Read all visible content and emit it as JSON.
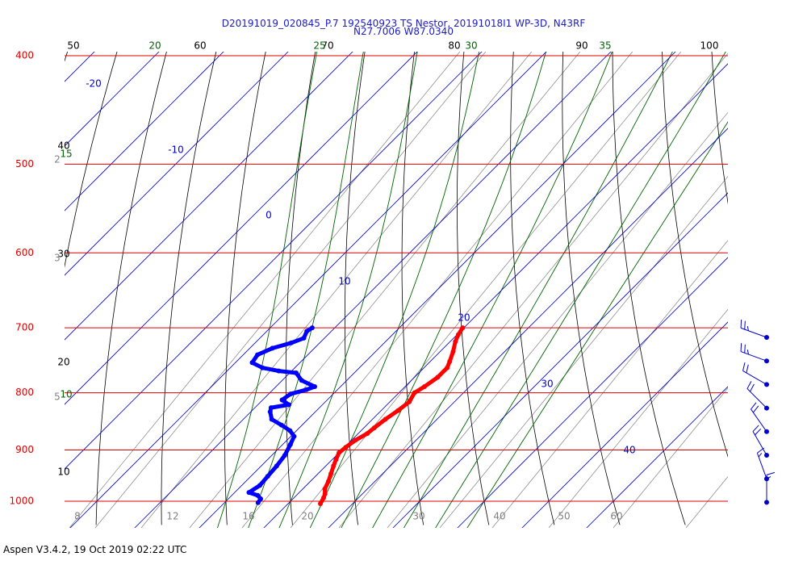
{
  "header": {
    "line1": "D20191019_020845_P.7 192540923 TS Nestor, 20191018I1 WP-3D, N43RF",
    "line2": "N27.7006 W87.0340"
  },
  "footer": {
    "text": "Aspen V3.4.2, 19 Oct 2019  02:22 UTC"
  },
  "colors": {
    "isobar": "#e00000",
    "isotherm": "#0000cc",
    "dry_adiabat": "#000000",
    "moist_adiabat": "#006400",
    "mixing_ratio": "#808080",
    "temperature": "#ff0000",
    "dewpoint": "#0000ff",
    "wind": "#0000cc"
  },
  "chart_data": {
    "type": "skew-t",
    "pressure_levels": [
      {
        "p": 400,
        "label": "400"
      },
      {
        "p": 500,
        "label": "500"
      },
      {
        "p": 600,
        "label": "600"
      },
      {
        "p": 700,
        "label": "700"
      },
      {
        "p": 800,
        "label": "800"
      },
      {
        "p": 900,
        "label": "900"
      },
      {
        "p": 1000,
        "label": "1000"
      }
    ],
    "isotherm_labels": [
      "-20",
      "-10",
      "0",
      "10",
      "20",
      "30",
      "40"
    ],
    "dry_adiabat_labels": [
      "50",
      "60",
      "70",
      "80",
      "90",
      "100",
      "40",
      "30",
      "20",
      "10"
    ],
    "moist_adiabat_labels": [
      "20",
      "25",
      "30",
      "35",
      "15",
      "10"
    ],
    "mixing_ratio_labels": [
      "8",
      "12",
      "16",
      "20",
      "30",
      "40",
      "50",
      "60",
      "2",
      "3",
      "5"
    ],
    "temperature": [
      [
        700,
        9.8
      ],
      [
        710,
        10.2
      ],
      [
        720,
        10.8
      ],
      [
        735,
        12.0
      ],
      [
        750,
        13.0
      ],
      [
        760,
        13.6
      ],
      [
        775,
        13.6
      ],
      [
        790,
        13.0
      ],
      [
        800,
        12.4
      ],
      [
        815,
        13.0
      ],
      [
        830,
        12.6
      ],
      [
        845,
        12.0
      ],
      [
        860,
        11.6
      ],
      [
        870,
        11.4
      ],
      [
        882,
        10.6
      ],
      [
        895,
        10.2
      ],
      [
        905,
        10.0
      ],
      [
        918,
        10.6
      ],
      [
        930,
        11.2
      ],
      [
        945,
        12.0
      ],
      [
        960,
        12.8
      ],
      [
        975,
        13.4
      ],
      [
        985,
        14.2
      ],
      [
        993,
        14.6
      ],
      [
        1005,
        15.0
      ]
    ],
    "dewpoint": [
      [
        700,
        -13.5
      ],
      [
        705,
        -13.8
      ],
      [
        715,
        -13.2
      ],
      [
        722,
        -14.4
      ],
      [
        730,
        -16.5
      ],
      [
        740,
        -17.8
      ],
      [
        752,
        -17.4
      ],
      [
        760,
        -15.0
      ],
      [
        765,
        -12.0
      ],
      [
        768,
        -9.0
      ],
      [
        780,
        -7.0
      ],
      [
        790,
        -4.0
      ],
      [
        795,
        -4.8
      ],
      [
        802,
        -6.6
      ],
      [
        812,
        -7.0
      ],
      [
        820,
        -5.2
      ],
      [
        825,
        -7.5
      ],
      [
        832,
        -7.0
      ],
      [
        845,
        -5.6
      ],
      [
        855,
        -3.2
      ],
      [
        865,
        -1.0
      ],
      [
        875,
        0.5
      ],
      [
        890,
        1.2
      ],
      [
        910,
        2.0
      ],
      [
        930,
        2.4
      ],
      [
        950,
        2.6
      ],
      [
        968,
        2.8
      ],
      [
        982,
        2.2
      ],
      [
        988,
        4.0
      ],
      [
        995,
        5.0
      ],
      [
        1003,
        5.2
      ]
    ],
    "winds": [
      {
        "p": 700,
        "dir": 110,
        "speed": 25
      },
      {
        "p": 735,
        "dir": 110,
        "speed": 25
      },
      {
        "p": 775,
        "dir": 120,
        "speed": 20
      },
      {
        "p": 815,
        "dir": 135,
        "speed": 20
      },
      {
        "p": 860,
        "dir": 145,
        "speed": 20
      },
      {
        "p": 910,
        "dir": 150,
        "speed": 20
      },
      {
        "p": 965,
        "dir": 160,
        "speed": 15
      },
      {
        "p": 1020,
        "dir": 180,
        "speed": 15
      }
    ]
  }
}
